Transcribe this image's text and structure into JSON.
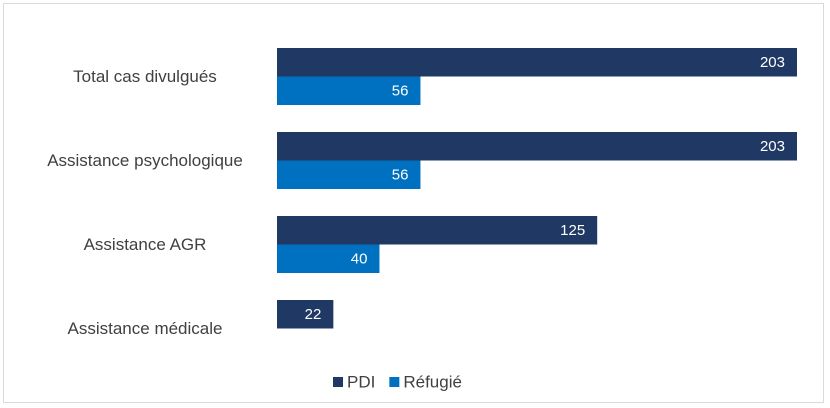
{
  "chart_data": {
    "type": "hbar",
    "categories": [
      "Total cas divulgués",
      "Assistance psychologique",
      "Assistance AGR",
      "Assistance médicale"
    ],
    "series": [
      {
        "name": "PDI",
        "color": "#1f3864",
        "values": [
          203,
          203,
          125,
          22
        ]
      },
      {
        "name": "Réfugié",
        "color": "#0070c0",
        "values": [
          56,
          56,
          40,
          null
        ]
      }
    ],
    "xlim": [
      0,
      203
    ],
    "legend": "bottom"
  }
}
